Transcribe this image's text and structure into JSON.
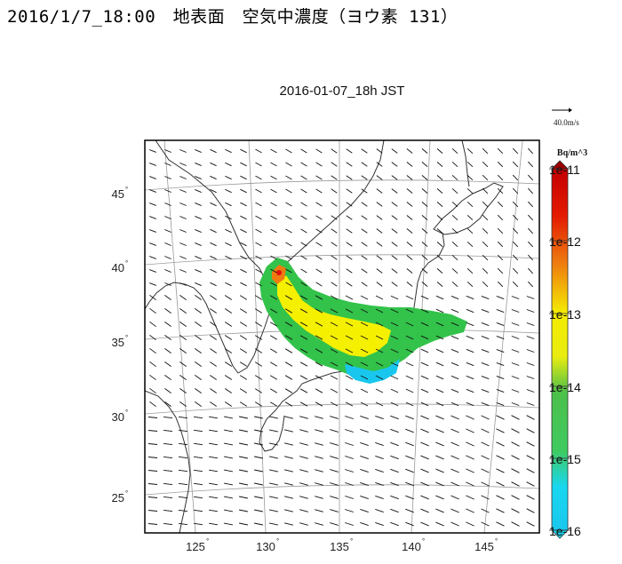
{
  "page_title": "2016/1/7_18:00　地表面　空気中濃度（ヨウ素 131）",
  "map": {
    "timestamp": "2016-01-07_18h JST",
    "wind_reference_label": "40.0m/s",
    "lat_labels": [
      {
        "deg": 45,
        "text": "45"
      },
      {
        "deg": 40,
        "text": "40"
      },
      {
        "deg": 35,
        "text": "35"
      },
      {
        "deg": 30,
        "text": "30"
      },
      {
        "deg": 25,
        "text": "25"
      }
    ],
    "lon_labels": [
      {
        "deg": 125,
        "text": "125"
      },
      {
        "deg": 130,
        "text": "130"
      },
      {
        "deg": 135,
        "text": "135"
      },
      {
        "deg": 140,
        "text": "140"
      },
      {
        "deg": 145,
        "text": "145"
      }
    ],
    "degree_symbol": "°",
    "plume_colors": {
      "green": "#33c24a",
      "yellow": "#f5f000",
      "cyan": "#19c7ee",
      "orange": "#f07a10",
      "red": "#e01010"
    }
  },
  "colorbar": {
    "unit": "Bq/m^3",
    "labels": [
      "1e-11",
      "1e-12",
      "1e-13",
      "1e-14",
      "1e-15",
      "1e-16"
    ],
    "colors": [
      "#d80000",
      "#ee7b10",
      "#f5ec00",
      "#4cc04a",
      "#19d7f0"
    ]
  }
}
